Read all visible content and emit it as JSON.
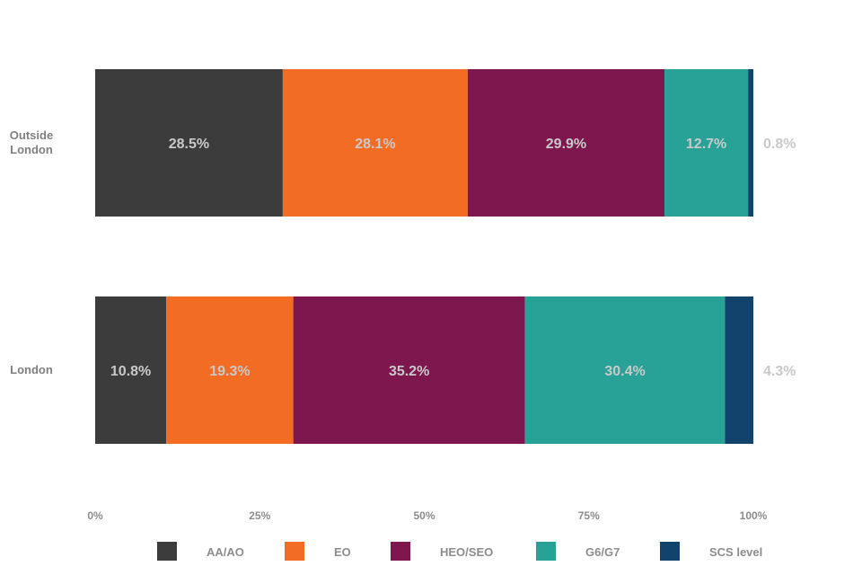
{
  "chart_data": {
    "type": "bar",
    "orientation": "horizontal",
    "stacked": true,
    "categories": [
      "Outside London",
      "London"
    ],
    "series": [
      {
        "name": "AA/AO",
        "values": [
          28.5,
          10.8
        ],
        "color": "#3c3c3c"
      },
      {
        "name": "EO",
        "values": [
          28.1,
          19.3
        ],
        "color": "#f26c24"
      },
      {
        "name": "HEO/SEO",
        "values": [
          29.9,
          35.2
        ],
        "color": "#7e174d"
      },
      {
        "name": "G6/G7",
        "values": [
          12.7,
          30.4
        ],
        "color": "#28a197"
      },
      {
        "name": "SCS level",
        "values": [
          0.8,
          4.3
        ],
        "color": "#12436d"
      }
    ],
    "data_labels": [
      [
        "28.5%",
        "28.1%",
        "29.9%",
        "12.7%",
        "0.8%"
      ],
      [
        "10.8%",
        "19.3%",
        "35.2%",
        "30.4%",
        "4.3%"
      ]
    ],
    "xlim": [
      0,
      100
    ],
    "x_ticks": [
      "0%",
      "25%",
      "50%",
      "75%",
      "100%"
    ],
    "legend_position": "bottom",
    "grid": false
  }
}
